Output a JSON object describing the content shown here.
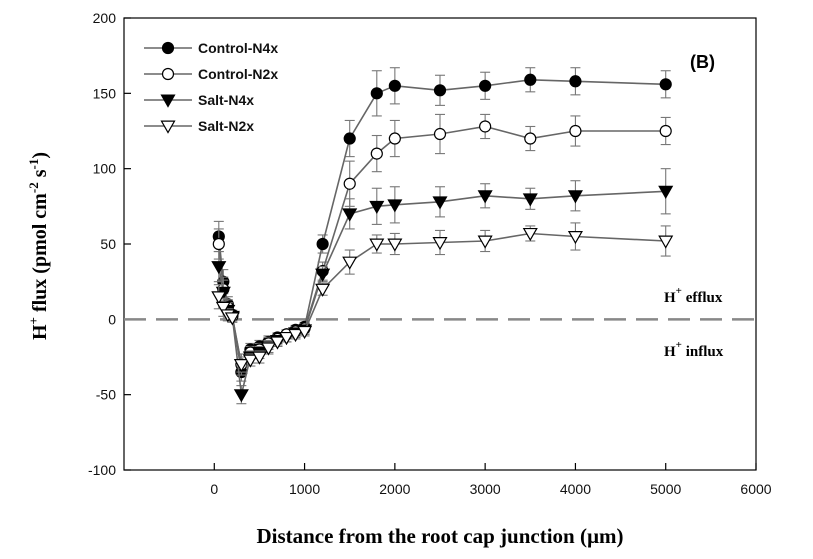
{
  "chart_data": {
    "type": "line",
    "panel_label": "(B)",
    "xlabel": "Distance from the root cap junction (µm)",
    "ylabel": "H + flux (pmol cm-2 s-1)",
    "ylabel_parts": {
      "main": "H",
      "sup_plus": "+",
      "mid": " flux (pmol cm",
      "sup1": "-2",
      "mid2": " s",
      "sup2": "-1",
      "end": ")"
    },
    "xlim": [
      -1000,
      6000
    ],
    "ylim": [
      -100,
      200
    ],
    "xticks": [
      0,
      1000,
      2000,
      3000,
      4000,
      5000,
      6000
    ],
    "yticks": [
      -100,
      -50,
      0,
      50,
      100,
      150,
      200
    ],
    "grid": false,
    "legend_position": "top-left",
    "reference_line": {
      "y": 0,
      "style": "dashed"
    },
    "annotations": [
      {
        "base": "H",
        "sup": "+",
        "text": " efflux"
      },
      {
        "base": "H",
        "sup": "+",
        "text": " influx"
      }
    ],
    "x": [
      50,
      100,
      150,
      200,
      300,
      400,
      500,
      600,
      700,
      800,
      900,
      1000,
      1200,
      1500,
      1800,
      2000,
      2500,
      3000,
      3500,
      4000,
      5000
    ],
    "series": [
      {
        "name": "Control-N4x",
        "marker": "circle-filled",
        "values": [
          55,
          25,
          10,
          3,
          -35,
          -20,
          -18,
          -15,
          -12,
          -10,
          -7,
          -5,
          50,
          120,
          150,
          155,
          152,
          155,
          159,
          158,
          156
        ],
        "errors": [
          10,
          8,
          5,
          3,
          6,
          4,
          4,
          4,
          3,
          3,
          3,
          3,
          6,
          12,
          15,
          12,
          10,
          9,
          8,
          9,
          9
        ]
      },
      {
        "name": "Control-N2x",
        "marker": "circle-open",
        "values": [
          50,
          20,
          8,
          2,
          -30,
          -22,
          -20,
          -16,
          -13,
          -10,
          -8,
          -6,
          32,
          90,
          110,
          120,
          123,
          128,
          120,
          125,
          125
        ],
        "errors": [
          10,
          8,
          5,
          3,
          7,
          4,
          4,
          4,
          3,
          3,
          3,
          3,
          6,
          15,
          12,
          12,
          13,
          8,
          8,
          10,
          9
        ]
      },
      {
        "name": "Salt-N4x",
        "marker": "triangle-down-filled",
        "values": [
          35,
          18,
          6,
          2,
          -50,
          -25,
          -22,
          -18,
          -14,
          -12,
          -9,
          -7,
          30,
          70,
          75,
          76,
          78,
          82,
          80,
          82,
          85
        ],
        "errors": [
          10,
          8,
          5,
          3,
          6,
          4,
          4,
          4,
          3,
          3,
          3,
          3,
          5,
          10,
          12,
          12,
          10,
          8,
          7,
          10,
          15
        ]
      },
      {
        "name": "Salt-N2x",
        "marker": "triangle-down-open",
        "values": [
          15,
          8,
          3,
          1,
          -30,
          -27,
          -25,
          -19,
          -15,
          -12,
          -10,
          -8,
          20,
          38,
          50,
          50,
          51,
          52,
          57,
          55,
          52
        ],
        "errors": [
          8,
          6,
          4,
          3,
          5,
          4,
          4,
          4,
          3,
          3,
          3,
          3,
          4,
          8,
          6,
          7,
          8,
          7,
          5,
          9,
          10
        ]
      }
    ]
  }
}
